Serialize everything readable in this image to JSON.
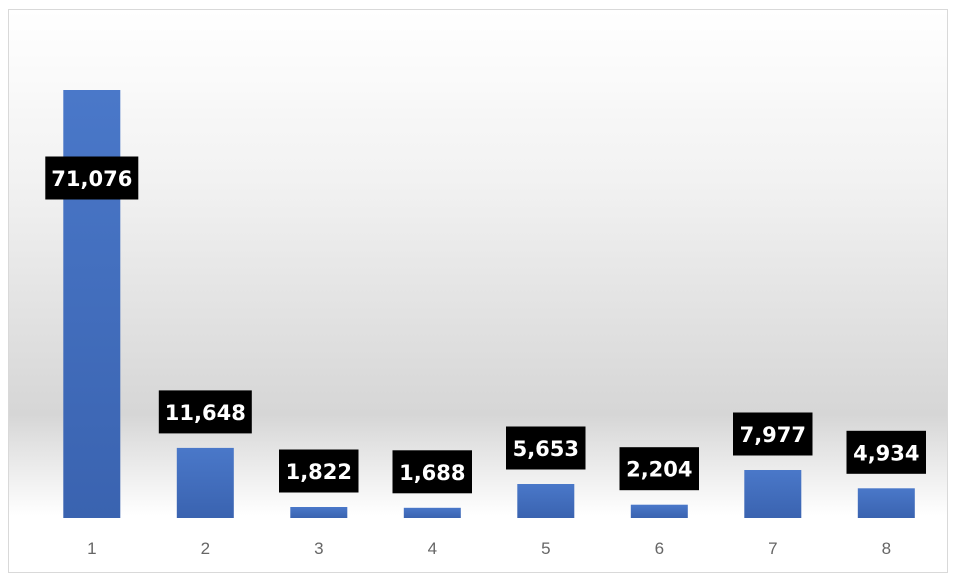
{
  "chart_data": {
    "type": "bar",
    "categories": [
      "1",
      "2",
      "3",
      "4",
      "5",
      "6",
      "7",
      "8"
    ],
    "values": [
      71076,
      11648,
      1822,
      1688,
      5653,
      2204,
      7977,
      4934
    ],
    "data_labels": [
      "71,076",
      "11,648",
      "1,822",
      "1,688",
      "5,653",
      "2,204",
      "7,977",
      "4,934"
    ],
    "title": "",
    "xlabel": "",
    "ylabel": "",
    "ylim": [
      0,
      71076
    ],
    "grid": false,
    "legend": "none",
    "bar_color": "#4472c4",
    "label_background": "#000000",
    "label_text_color": "#ffffff"
  }
}
